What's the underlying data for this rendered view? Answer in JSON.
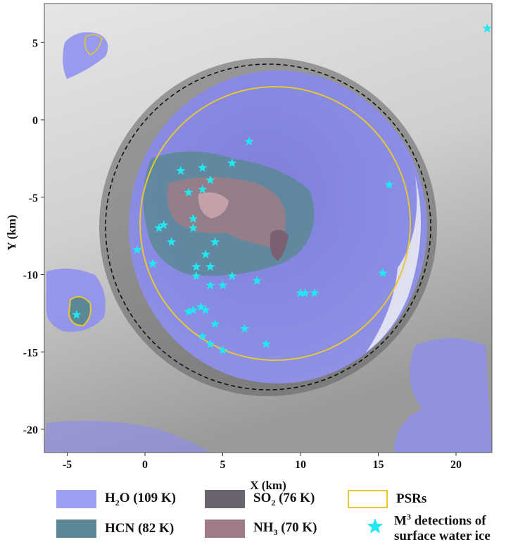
{
  "chart_data": {
    "type": "map",
    "xlabel": "X (km)",
    "ylabel": "Y (km)",
    "xlim": [
      -6.3,
      22.4
    ],
    "ylim": [
      -21.5,
      7.5
    ],
    "xticks": [
      "-5",
      "0",
      "5",
      "10",
      "15",
      "20"
    ],
    "yticks": [
      "5",
      "0",
      "-5",
      "-10",
      "-15",
      "-20"
    ],
    "crater_rim_circle": {
      "center_km": [
        7.9,
        -6.9
      ],
      "radius_km": 10.5,
      "style": "black dashed"
    },
    "psr_contour_circle_approx": {
      "center_km": [
        8.3,
        -6.7
      ],
      "radius_km": 8.8
    },
    "m3_detections_km": [
      [
        6.7,
        -1.4
      ],
      [
        2.3,
        -3.3
      ],
      [
        3.7,
        -3.1
      ],
      [
        5.6,
        -2.8
      ],
      [
        4.2,
        -3.9
      ],
      [
        2.8,
        -4.7
      ],
      [
        3.7,
        -4.5
      ],
      [
        15.7,
        -4.2
      ],
      [
        3.1,
        -6.4
      ],
      [
        1.2,
        -6.8
      ],
      [
        0.9,
        -7.0
      ],
      [
        3.1,
        -7.0
      ],
      [
        1.7,
        -7.9
      ],
      [
        4.5,
        -7.9
      ],
      [
        -0.5,
        -8.4
      ],
      [
        3.9,
        -8.7
      ],
      [
        0.5,
        -9.3
      ],
      [
        3.3,
        -9.5
      ],
      [
        4.2,
        -9.5
      ],
      [
        3.3,
        -10.1
      ],
      [
        5.6,
        -10.1
      ],
      [
        7.2,
        -10.4
      ],
      [
        4.2,
        -10.7
      ],
      [
        5.0,
        -10.7
      ],
      [
        15.3,
        -9.9
      ],
      [
        10.0,
        -11.2
      ],
      [
        10.3,
        -11.2
      ],
      [
        10.9,
        -11.2
      ],
      [
        3.6,
        -12.1
      ],
      [
        3.9,
        -12.3
      ],
      [
        2.8,
        -12.4
      ],
      [
        3.1,
        -12.3
      ],
      [
        4.5,
        -13.2
      ],
      [
        6.4,
        -13.5
      ],
      [
        3.7,
        -14.0
      ],
      [
        4.2,
        -14.5
      ],
      [
        5.0,
        -14.9
      ],
      [
        7.8,
        -14.5
      ],
      [
        -4.4,
        -12.6
      ],
      [
        22.0,
        5.9
      ]
    ]
  },
  "legend": {
    "h2o": {
      "label_main": "H",
      "label_sub": "2",
      "label_rest": "O (109 K)",
      "color": "#9c9ef2"
    },
    "so2": {
      "label_main": "SO",
      "label_sub": "2",
      "label_rest": " (76 K)",
      "color": "#6a6470"
    },
    "psr": {
      "label": "PSRs",
      "color": "#e6c832"
    },
    "hcn": {
      "label": "HCN (82 K)",
      "color": "#5b8894"
    },
    "nh3": {
      "label_main": "NH",
      "label_sub": "3",
      "label_rest": " (70 K)",
      "color": "#9e7c86"
    },
    "m3": {
      "label_main": "M",
      "label_sup": "3",
      "label_rest": " detections of",
      "label_line2": "surface water ice",
      "color": "#22e6f2"
    }
  }
}
